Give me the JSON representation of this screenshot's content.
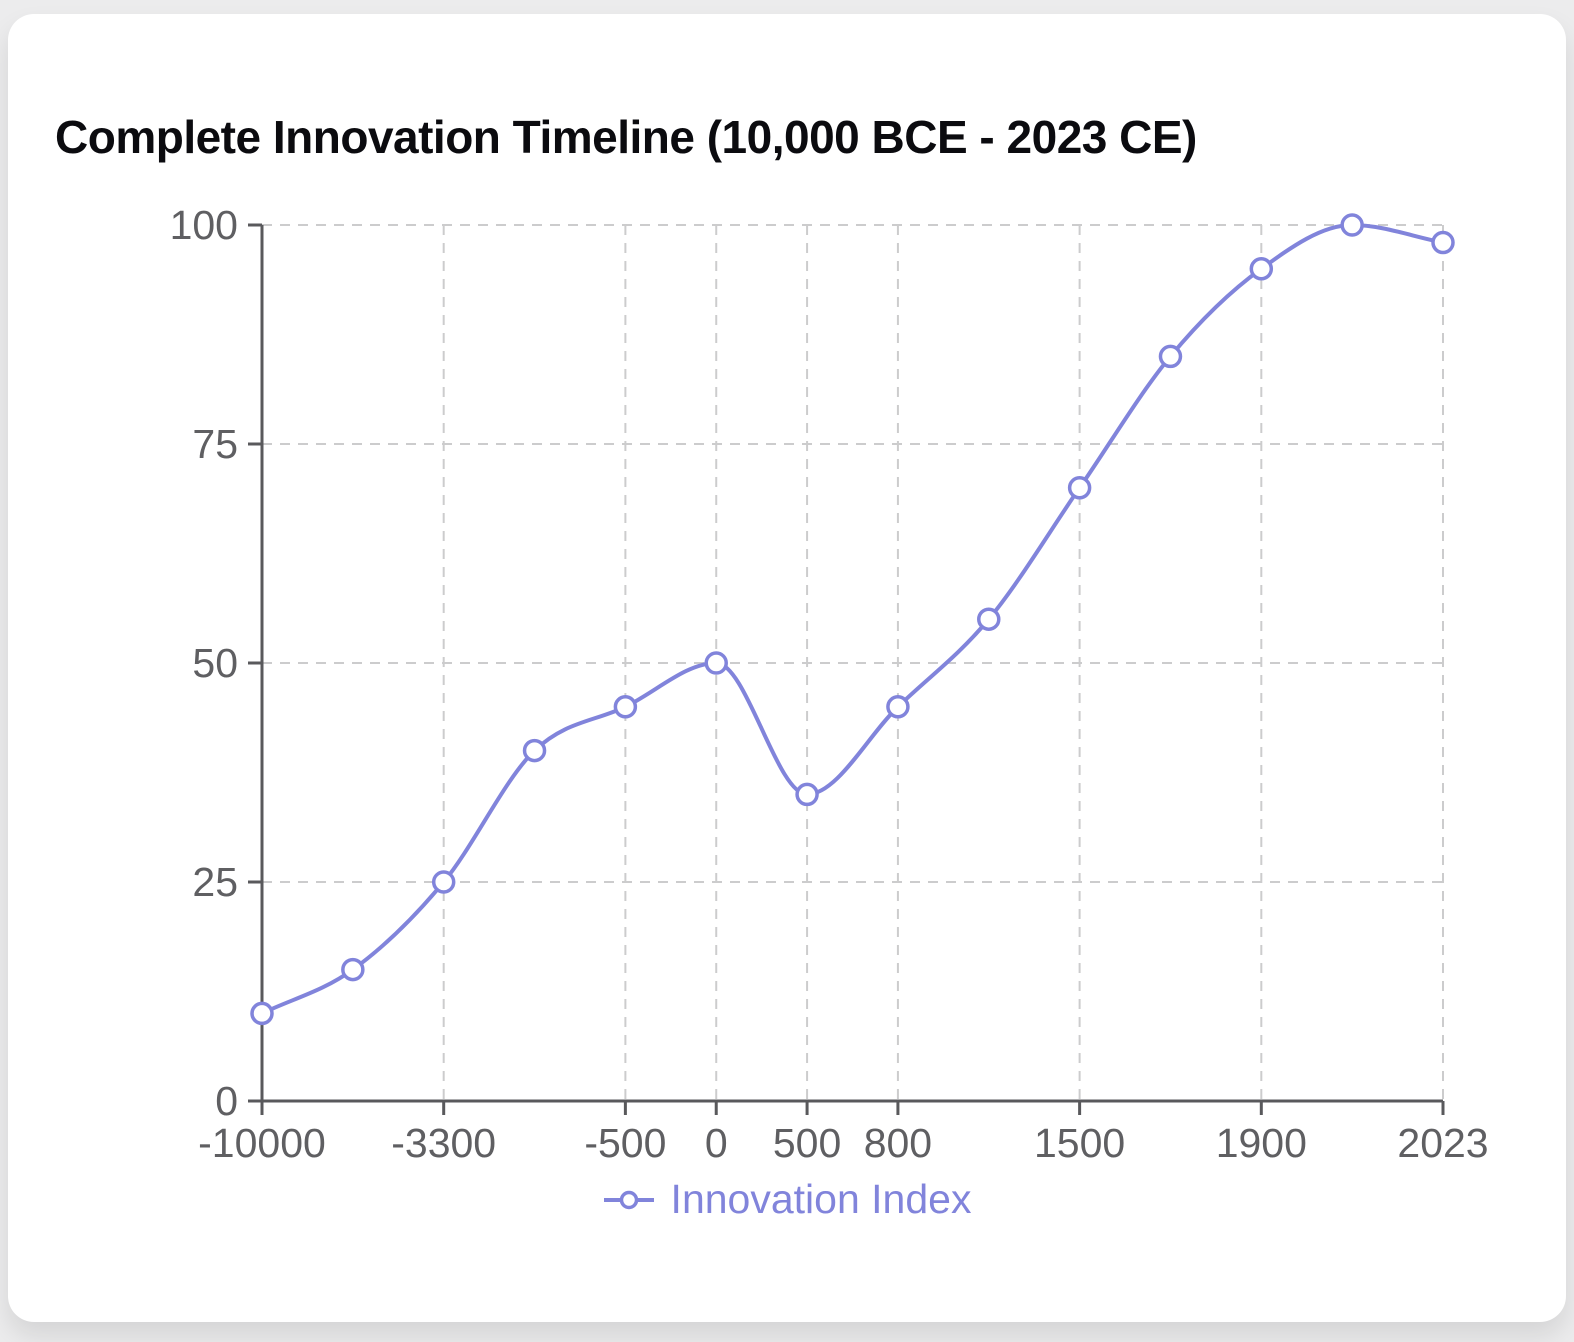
{
  "chart_data": {
    "type": "line",
    "title": "Complete Innovation Timeline (10,000 BCE - 2023 CE)",
    "series": [
      {
        "name": "Innovation Index",
        "values": [
          10,
          15,
          25,
          40,
          45,
          50,
          35,
          45,
          55,
          70,
          85,
          95,
          100,
          98
        ]
      }
    ],
    "num_points": 14,
    "x_tick_labels": [
      {
        "index": 0,
        "label": "-10000"
      },
      {
        "index": 2,
        "label": "-3300"
      },
      {
        "index": 4,
        "label": "-500"
      },
      {
        "index": 5,
        "label": "0"
      },
      {
        "index": 6,
        "label": "500"
      },
      {
        "index": 7,
        "label": "800"
      },
      {
        "index": 9,
        "label": "1500"
      },
      {
        "index": 11,
        "label": "1900"
      },
      {
        "index": 13,
        "label": "2023"
      }
    ],
    "y_ticks": [
      0,
      25,
      50,
      75,
      100
    ],
    "ylim": [
      0,
      100
    ],
    "grid": {
      "shown": true,
      "style": "dashed"
    },
    "legend": {
      "label": "Innovation Index",
      "position": "bottom"
    },
    "colors": {
      "line": "#8184db",
      "point_fill": "#ffffff",
      "grid": "#cccccd",
      "axis": "#59595c",
      "tick_label": "#5f5f62",
      "title": "#0b0b0f",
      "legend_text": "#8184db"
    }
  }
}
